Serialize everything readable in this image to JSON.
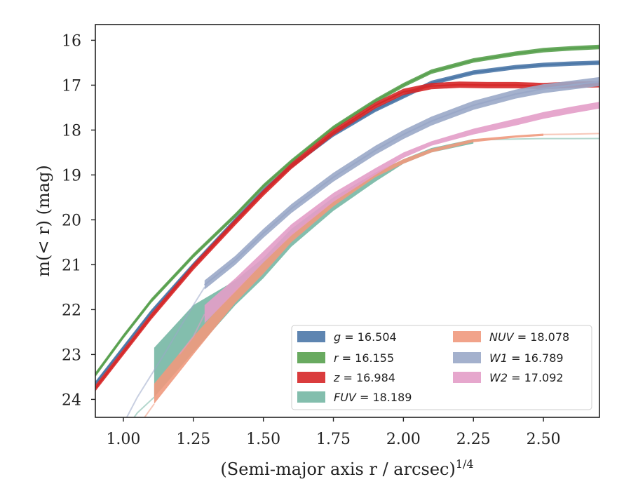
{
  "chart_data": {
    "type": "line",
    "title": "",
    "xlabel": "(Semi-major axis r / arcsec)",
    "xlabel_exponent": "1/4",
    "ylabel": "m(< r) (mag)",
    "xlim": [
      0.9,
      2.7
    ],
    "ylim": [
      24.4,
      15.65
    ],
    "y_inverted": true,
    "grid": false,
    "legend_position": "lower-right",
    "xticks": [
      "1.00",
      "1.25",
      "1.50",
      "1.75",
      "2.00",
      "2.25",
      "2.50"
    ],
    "xtick_values": [
      1.0,
      1.25,
      1.5,
      1.75,
      2.0,
      2.25,
      2.5
    ],
    "yticks": [
      "16",
      "17",
      "18",
      "19",
      "20",
      "21",
      "22",
      "23",
      "24"
    ],
    "ytick_values": [
      16,
      17,
      18,
      19,
      20,
      21,
      22,
      23,
      24
    ],
    "series": [
      {
        "key": "g",
        "label_var": "g",
        "label_value": "= 16.504",
        "color": "#4c78a8",
        "band_width": 0.05,
        "x": [
          0.9,
          1.0,
          1.1,
          1.25,
          1.4,
          1.5,
          1.6,
          1.75,
          1.9,
          2.0,
          2.1,
          2.25,
          2.4,
          2.5,
          2.6,
          2.7
        ],
        "y": [
          23.65,
          22.85,
          22.05,
          21.0,
          20.0,
          19.35,
          18.8,
          18.1,
          17.55,
          17.25,
          16.95,
          16.72,
          16.6,
          16.55,
          16.52,
          16.5
        ]
      },
      {
        "key": "r",
        "label_var": "r",
        "label_value": "= 16.155",
        "color": "#59a14f",
        "band_width": 0.05,
        "x": [
          0.9,
          1.0,
          1.1,
          1.25,
          1.4,
          1.5,
          1.6,
          1.75,
          1.9,
          2.0,
          2.1,
          2.25,
          2.4,
          2.5,
          2.6,
          2.7
        ],
        "y": [
          23.45,
          22.6,
          21.8,
          20.8,
          19.9,
          19.25,
          18.7,
          17.95,
          17.35,
          17.0,
          16.7,
          16.45,
          16.3,
          16.22,
          16.18,
          16.15
        ]
      },
      {
        "key": "z",
        "label_var": "z",
        "label_value": "= 16.984",
        "color": "#d62728",
        "band_width": 0.07,
        "x": [
          0.9,
          1.0,
          1.1,
          1.25,
          1.4,
          1.5,
          1.6,
          1.75,
          1.9,
          2.0,
          2.1,
          2.2,
          2.3,
          2.4,
          2.5,
          2.6,
          2.7
        ],
        "y": [
          23.75,
          22.95,
          22.15,
          21.05,
          20.05,
          19.4,
          18.8,
          18.05,
          17.45,
          17.15,
          17.02,
          16.99,
          17.0,
          17.0,
          17.02,
          16.99,
          16.98
        ]
      },
      {
        "key": "FUV",
        "label_var": "FUV",
        "label_value": "= 18.189",
        "color": "#76b7a4",
        "band_lo": {
          "x": [
            1.11,
            1.25,
            1.4,
            1.5,
            1.6,
            1.75,
            1.9,
            2.0,
            2.1,
            2.25
          ],
          "y": [
            23.95,
            22.95,
            21.9,
            21.3,
            20.6,
            19.8,
            19.15,
            18.75,
            18.5,
            18.3
          ]
        },
        "band_hi": {
          "x": [
            1.11,
            1.25,
            1.4,
            1.5,
            1.6,
            1.75,
            1.9,
            2.0,
            2.1,
            2.25
          ],
          "y": [
            22.85,
            21.9,
            21.35,
            20.85,
            20.2,
            19.5,
            18.95,
            18.65,
            18.4,
            18.2
          ]
        },
        "ext_low": {
          "x": [
            0.98,
            1.05,
            1.11
          ],
          "y": [
            24.9,
            24.3,
            23.95
          ]
        },
        "ext_high": {
          "x": [
            2.25,
            2.4,
            2.5,
            2.6,
            2.7
          ],
          "y": [
            18.22,
            18.2,
            18.19,
            18.19,
            18.189
          ]
        }
      },
      {
        "key": "NUV",
        "label_var": "NUV",
        "label_value": "= 18.078",
        "color": "#f0997d",
        "band_lo": {
          "x": [
            1.11,
            1.25,
            1.4,
            1.5,
            1.6,
            1.75,
            1.9,
            2.0,
            2.1,
            2.25,
            2.4,
            2.5
          ],
          "y": [
            24.1,
            23.0,
            21.85,
            21.2,
            20.5,
            19.7,
            19.05,
            18.75,
            18.5,
            18.27,
            18.17,
            18.13
          ]
        },
        "band_hi": {
          "x": [
            1.11,
            1.25,
            1.4,
            1.5,
            1.6,
            1.75,
            1.9,
            2.0,
            2.1,
            2.25,
            2.4,
            2.5
          ],
          "y": [
            23.65,
            22.6,
            21.55,
            20.95,
            20.3,
            19.55,
            18.95,
            18.65,
            18.42,
            18.2,
            18.12,
            18.08
          ]
        },
        "ext_low": {
          "x": [
            1.02,
            1.07,
            1.11
          ],
          "y": [
            24.9,
            24.45,
            24.1
          ]
        },
        "ext_high": {
          "x": [
            2.5,
            2.6,
            2.7
          ],
          "y": [
            18.1,
            18.09,
            18.078
          ]
        }
      },
      {
        "key": "W1",
        "label_var": "W1",
        "label_value": "= 16.789",
        "color": "#9aa8c8",
        "band_width": 0.1,
        "x": [
          1.29,
          1.4,
          1.5,
          1.6,
          1.75,
          1.9,
          2.0,
          2.1,
          2.25,
          2.4,
          2.5,
          2.6,
          2.7
        ],
        "y": [
          21.45,
          20.9,
          20.3,
          19.75,
          19.05,
          18.45,
          18.1,
          17.8,
          17.45,
          17.2,
          17.08,
          17.0,
          16.92
        ],
        "ext_low": {
          "x": [
            0.97,
            1.05,
            1.15,
            1.25,
            1.29
          ],
          "y": [
            24.9,
            23.95,
            22.95,
            21.9,
            21.5
          ]
        }
      },
      {
        "key": "W2",
        "label_var": "W2",
        "label_value": "= 17.092",
        "color": "#e39dc8",
        "band_lo": {
          "x": [
            1.29,
            1.4,
            1.5,
            1.6,
            1.75,
            1.9,
            2.0,
            2.1,
            2.25,
            2.4,
            2.5,
            2.6,
            2.7
          ],
          "y": [
            22.3,
            21.6,
            20.95,
            20.35,
            19.6,
            19.0,
            18.62,
            18.35,
            18.1,
            17.9,
            17.75,
            17.63,
            17.52
          ]
        },
        "band_hi": {
          "x": [
            1.29,
            1.4,
            1.5,
            1.6,
            1.75,
            1.9,
            2.0,
            2.1,
            2.25,
            2.4,
            2.5,
            2.6,
            2.7
          ],
          "y": [
            21.9,
            21.3,
            20.7,
            20.1,
            19.4,
            18.85,
            18.5,
            18.25,
            17.97,
            17.75,
            17.6,
            17.48,
            17.37
          ]
        },
        "ext_low": {
          "x": [
            1.2,
            1.25,
            1.29
          ],
          "y": [
            23.0,
            22.6,
            22.1
          ]
        }
      }
    ]
  }
}
